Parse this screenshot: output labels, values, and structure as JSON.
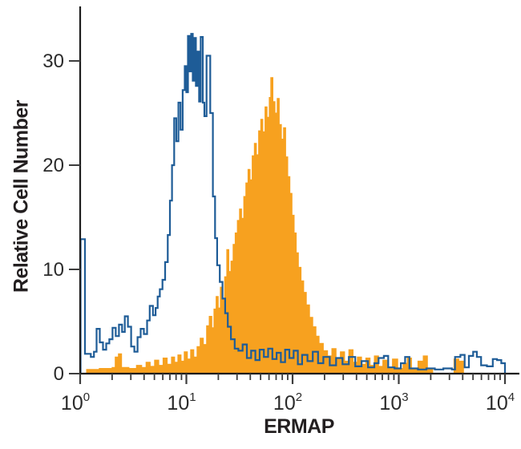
{
  "figure": {
    "background": "#ffffff",
    "axis_line_color": "#1c1c1c",
    "tick_color": "#3d3d3d",
    "tick_label_color": "#2b2b2b"
  },
  "chart_data": {
    "type": "area",
    "subtype": "flow-cytometry-overlay-histogram",
    "title": "",
    "xlabel": "ERMAP",
    "ylabel": "Relative Cell Number",
    "x_scale": "log10",
    "xlim_log": [
      0,
      4
    ],
    "ylim": [
      0,
      35
    ],
    "grid": false,
    "legend": "none",
    "x_tick_base": "10",
    "x_tick_exponents": [
      0,
      1,
      2,
      3,
      4
    ],
    "y_ticks": [
      0,
      10,
      20,
      30
    ],
    "series": [
      {
        "name": "orange-filled-histogram",
        "style": "filled",
        "color": "#F7A11F",
        "points": [
          [
            0.06,
            0.4
          ],
          [
            0.18,
            0.5
          ],
          [
            0.3,
            0.6
          ],
          [
            0.33,
            1.6
          ],
          [
            0.36,
            1.9
          ],
          [
            0.39,
            0.6
          ],
          [
            0.46,
            0.5
          ],
          [
            0.53,
            0.8
          ],
          [
            0.58,
            0.6
          ],
          [
            0.62,
            1.1
          ],
          [
            0.66,
            0.7
          ],
          [
            0.7,
            1.3
          ],
          [
            0.74,
            0.8
          ],
          [
            0.78,
            1.5
          ],
          [
            0.82,
            0.9
          ],
          [
            0.86,
            1.6
          ],
          [
            0.89,
            1.1
          ],
          [
            0.92,
            1.8
          ],
          [
            0.95,
            1.2
          ],
          [
            0.98,
            2.1
          ],
          [
            1.01,
            1.4
          ],
          [
            1.04,
            2.3
          ],
          [
            1.07,
            1.6
          ],
          [
            1.1,
            2.6
          ],
          [
            1.13,
            3.4
          ],
          [
            1.16,
            2.8
          ],
          [
            1.19,
            4.6
          ],
          [
            1.215,
            5.5
          ],
          [
            1.24,
            4.4
          ],
          [
            1.26,
            6.2
          ],
          [
            1.28,
            7.4
          ],
          [
            1.3,
            6.3
          ],
          [
            1.32,
            8.3
          ],
          [
            1.34,
            7.2
          ],
          [
            1.36,
            9.3
          ],
          [
            1.38,
            11.9
          ],
          [
            1.4,
            9.8
          ],
          [
            1.42,
            10.8
          ],
          [
            1.44,
            12.4
          ],
          [
            1.46,
            13.5
          ],
          [
            1.48,
            14.7
          ],
          [
            1.5,
            15.8
          ],
          [
            1.52,
            14.9
          ],
          [
            1.54,
            17.0
          ],
          [
            1.56,
            18.3
          ],
          [
            1.58,
            19.6
          ],
          [
            1.6,
            18.6
          ],
          [
            1.62,
            20.9
          ],
          [
            1.64,
            22.1
          ],
          [
            1.66,
            21.0
          ],
          [
            1.68,
            23.3
          ],
          [
            1.7,
            24.4
          ],
          [
            1.72,
            23.2
          ],
          [
            1.74,
            25.6
          ],
          [
            1.76,
            24.6
          ],
          [
            1.78,
            26.5
          ],
          [
            1.795,
            28.4
          ],
          [
            1.815,
            26.1
          ],
          [
            1.835,
            25.0
          ],
          [
            1.855,
            26.4
          ],
          [
            1.875,
            23.9
          ],
          [
            1.895,
            22.5
          ],
          [
            1.915,
            23.6
          ],
          [
            1.935,
            20.8
          ],
          [
            1.955,
            18.9
          ],
          [
            1.975,
            17.3
          ],
          [
            1.995,
            15.2
          ],
          [
            2.015,
            13.5
          ],
          [
            2.035,
            11.6
          ],
          [
            2.055,
            10.2
          ],
          [
            2.08,
            8.9
          ],
          [
            2.105,
            7.8
          ],
          [
            2.13,
            6.6
          ],
          [
            2.16,
            5.4
          ],
          [
            2.19,
            4.5
          ],
          [
            2.22,
            3.6
          ],
          [
            2.25,
            2.9
          ],
          [
            2.29,
            2.2
          ],
          [
            2.33,
            1.7
          ],
          [
            2.37,
            2.4
          ],
          [
            2.41,
            1.4
          ],
          [
            2.45,
            2.1
          ],
          [
            2.49,
            1.2
          ],
          [
            2.53,
            2.3
          ],
          [
            2.57,
            1.1
          ],
          [
            2.61,
            1.6
          ],
          [
            2.65,
            0.9
          ],
          [
            2.69,
            1.5
          ],
          [
            2.73,
            0.8
          ],
          [
            2.77,
            1.7
          ],
          [
            2.81,
            0.7
          ],
          [
            2.85,
            1.3
          ],
          [
            2.89,
            0.6
          ],
          [
            2.94,
            1.4
          ],
          [
            2.99,
            0.5
          ],
          [
            3.04,
            1.0
          ],
          [
            3.08,
            1.5
          ],
          [
            3.12,
            0.4
          ],
          [
            3.18,
            1.2
          ],
          [
            3.23,
            1.7
          ],
          [
            3.27,
            0.4
          ],
          [
            3.32,
            0.0
          ],
          [
            3.52,
            1.4
          ],
          [
            3.565,
            1.2
          ],
          [
            3.61,
            0.0
          ]
        ]
      },
      {
        "name": "blue-outline-histogram",
        "style": "outline",
        "color": "#1E5C97",
        "points": [
          [
            0.004,
            12.9
          ],
          [
            0.045,
            1.9
          ],
          [
            0.1,
            1.6
          ],
          [
            0.13,
            2.1
          ],
          [
            0.155,
            4.3
          ],
          [
            0.185,
            3.0
          ],
          [
            0.215,
            2.3
          ],
          [
            0.245,
            2.9
          ],
          [
            0.275,
            3.3
          ],
          [
            0.305,
            4.4
          ],
          [
            0.335,
            3.6
          ],
          [
            0.365,
            4.7
          ],
          [
            0.395,
            4.0
          ],
          [
            0.42,
            5.5
          ],
          [
            0.45,
            4.5
          ],
          [
            0.48,
            2.6
          ],
          [
            0.51,
            2.1
          ],
          [
            0.54,
            3.5
          ],
          [
            0.57,
            4.3
          ],
          [
            0.6,
            3.8
          ],
          [
            0.63,
            5.1
          ],
          [
            0.655,
            6.5
          ],
          [
            0.685,
            5.6
          ],
          [
            0.71,
            6.3
          ],
          [
            0.73,
            7.4
          ],
          [
            0.75,
            8.1
          ],
          [
            0.775,
            9.0
          ],
          [
            0.8,
            10.7
          ],
          [
            0.825,
            13.3
          ],
          [
            0.845,
            16.6
          ],
          [
            0.865,
            20.0
          ],
          [
            0.885,
            24.5
          ],
          [
            0.905,
            22.3
          ],
          [
            0.925,
            26.0
          ],
          [
            0.945,
            23.4
          ],
          [
            0.965,
            27.2
          ],
          [
            0.985,
            29.5
          ],
          [
            1.0,
            27.0
          ],
          [
            1.015,
            32.4
          ],
          [
            1.03,
            29.0
          ],
          [
            1.045,
            32.6
          ],
          [
            1.06,
            28.1
          ],
          [
            1.075,
            32.2
          ],
          [
            1.09,
            27.6
          ],
          [
            1.105,
            30.9
          ],
          [
            1.12,
            26.1
          ],
          [
            1.135,
            32.3
          ],
          [
            1.155,
            26.0
          ],
          [
            1.17,
            24.7
          ],
          [
            1.19,
            30.5
          ],
          [
            1.225,
            25.0
          ],
          [
            1.25,
            17.0
          ],
          [
            1.27,
            13.0
          ],
          [
            1.29,
            10.4
          ],
          [
            1.315,
            8.8
          ],
          [
            1.34,
            7.2
          ],
          [
            1.365,
            5.8
          ],
          [
            1.39,
            4.5
          ],
          [
            1.42,
            3.3
          ],
          [
            1.455,
            2.4
          ],
          [
            1.49,
            2.2
          ],
          [
            1.53,
            2.8
          ],
          [
            1.57,
            1.5
          ],
          [
            1.61,
            2.2
          ],
          [
            1.65,
            1.3
          ],
          [
            1.69,
            2.3
          ],
          [
            1.73,
            1.6
          ],
          [
            1.77,
            2.4
          ],
          [
            1.81,
            1.4
          ],
          [
            1.85,
            2.0
          ],
          [
            1.89,
            1.1
          ],
          [
            1.93,
            2.3
          ],
          [
            1.97,
            1.5
          ],
          [
            2.01,
            2.2
          ],
          [
            2.05,
            0.9
          ],
          [
            2.09,
            1.8
          ],
          [
            2.14,
            1.2
          ],
          [
            2.19,
            2.1
          ],
          [
            2.24,
            1.0
          ],
          [
            2.29,
            1.6
          ],
          [
            2.35,
            0.8
          ],
          [
            2.41,
            1.5
          ],
          [
            2.47,
            0.9
          ],
          [
            2.53,
            1.6
          ],
          [
            2.59,
            0.7
          ],
          [
            2.65,
            1.2
          ],
          [
            2.71,
            0.6
          ],
          [
            2.77,
            1.0
          ],
          [
            2.81,
            1.5
          ],
          [
            2.86,
            1.7
          ],
          [
            2.9,
            0.6
          ],
          [
            2.96,
            0.5
          ],
          [
            3.02,
            1.0
          ],
          [
            3.06,
            1.6
          ],
          [
            3.1,
            0.5
          ],
          [
            3.18,
            0.4
          ],
          [
            3.26,
            0.5
          ],
          [
            3.34,
            0.4
          ],
          [
            3.42,
            0.5
          ],
          [
            3.5,
            0.4
          ],
          [
            3.53,
            1.6
          ],
          [
            3.58,
            1.8
          ],
          [
            3.62,
            0.6
          ],
          [
            3.66,
            1.7
          ],
          [
            3.7,
            2.1
          ],
          [
            3.735,
            1.6
          ],
          [
            3.775,
            0.8
          ],
          [
            3.83,
            0.7
          ],
          [
            3.885,
            1.4
          ],
          [
            3.925,
            1.3
          ],
          [
            3.965,
            1.0
          ],
          [
            4.0,
            0.0
          ]
        ]
      }
    ]
  }
}
